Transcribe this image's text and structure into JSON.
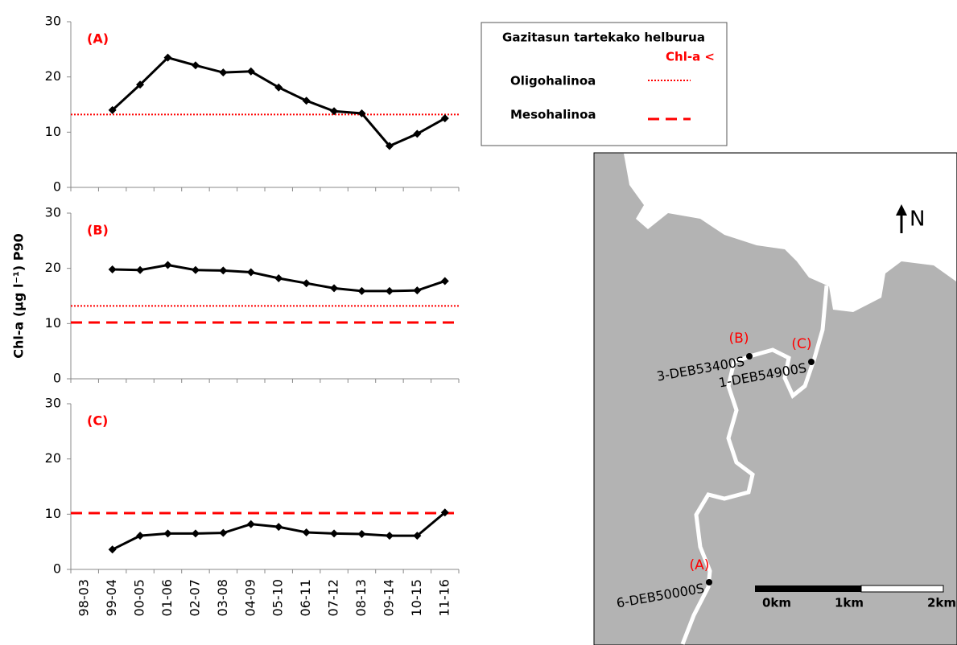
{
  "chart_data": {
    "type": "line",
    "ylabel": "Chl-a (µg l⁻¹)  P90",
    "categories": [
      "98-03",
      "99-04",
      "00-05",
      "01-06",
      "02-07",
      "03-08",
      "04-09",
      "05-10",
      "06-11",
      "07-12",
      "08-13",
      "09-14",
      "10-15",
      "11-16"
    ],
    "panels": [
      {
        "title": "(A)",
        "ylim": [
          0,
          30
        ],
        "yticks": [
          0,
          10,
          20,
          30
        ],
        "series": [
          {
            "color": "#000000",
            "values": [
              null,
              14,
              18.6,
              23.5,
              22.1,
              20.8,
              21,
              18.1,
              15.7,
              13.8,
              13.4,
              7.5,
              9.7,
              12.5
            ]
          }
        ],
        "thresholds": [
          {
            "value": 13.2,
            "style": "dotted",
            "color": "#ff0000"
          }
        ]
      },
      {
        "title": "(B)",
        "ylim": [
          0,
          30
        ],
        "yticks": [
          0,
          10,
          20,
          30
        ],
        "series": [
          {
            "color": "#000000",
            "values": [
              null,
              19.8,
              19.7,
              20.6,
              19.7,
              19.6,
              19.3,
              18.2,
              17.3,
              16.4,
              15.9,
              15.9,
              16.0,
              17.7
            ]
          }
        ],
        "thresholds": [
          {
            "value": 13.2,
            "style": "dotted",
            "color": "#ff0000"
          },
          {
            "value": 10.2,
            "style": "dashed",
            "color": "#ff0000"
          }
        ]
      },
      {
        "title": "(C)",
        "ylim": [
          0,
          30
        ],
        "yticks": [
          0,
          10,
          20,
          30
        ],
        "series": [
          {
            "color": "#000000",
            "values": [
              null,
              3.6,
              6.1,
              6.5,
              6.5,
              6.6,
              8.2,
              7.7,
              6.7,
              6.5,
              6.4,
              6.1,
              6.1,
              10.3
            ]
          }
        ],
        "thresholds": [
          {
            "value": 10.2,
            "style": "dashed",
            "color": "#ff0000"
          }
        ]
      }
    ]
  },
  "legend": {
    "title": "Gazitasun tartekako helburua",
    "subtitle": "Chl-a <",
    "items": [
      {
        "label": "Oligohalinoa",
        "style": "dotted",
        "color": "#ff0000"
      },
      {
        "label": "Mesohalinoa",
        "style": "dashed",
        "color": "#ff0000"
      }
    ]
  },
  "map": {
    "north": "N",
    "scale": [
      "0km",
      "1km",
      "2km"
    ],
    "stations": [
      {
        "letter": "(B)",
        "code": "3-DEB53400S"
      },
      {
        "letter": "(C)",
        "code": "1-DEB54900S"
      },
      {
        "letter": "(A)",
        "code": "6-DEB50000S"
      }
    ]
  }
}
